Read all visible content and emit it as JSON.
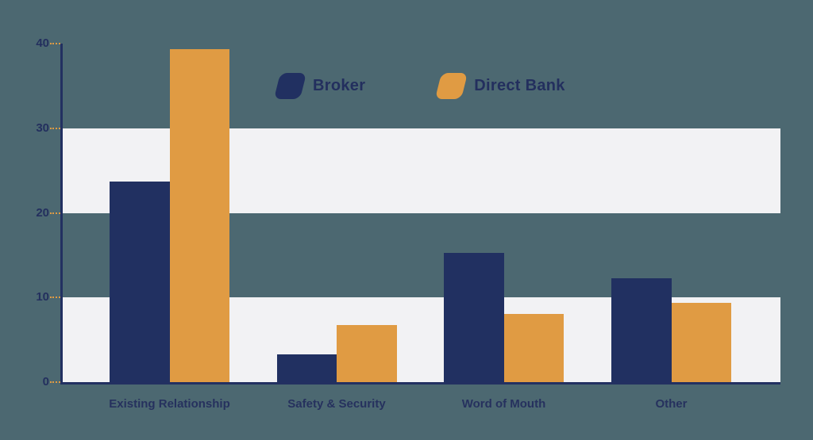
{
  "colors": {
    "background": "#4c6871",
    "band": "#f2f2f4",
    "axis": "#223061",
    "tick": "#e09b43",
    "text": "#232f5e",
    "broker": "#213061",
    "direct_bank": "#e09b43"
  },
  "legend": {
    "items": [
      {
        "label": "Broker",
        "color": "#213061"
      },
      {
        "label": "Direct Bank",
        "color": "#e09b43"
      }
    ]
  },
  "chart_data": {
    "type": "bar",
    "title": "",
    "categories": [
      "Existing Relationship",
      "Safety & Security",
      "Word of Mouth",
      "Other"
    ],
    "series": [
      {
        "name": "Broker",
        "color": "#213061",
        "values": [
          23.7,
          3.3,
          15.3,
          12.3
        ]
      },
      {
        "name": "Direct Bank",
        "color": "#e09b43",
        "values": [
          39.3,
          6.7,
          8.1,
          9.4
        ]
      }
    ],
    "ylim": [
      0,
      40
    ],
    "yticks": [
      0,
      10,
      20,
      30,
      40
    ],
    "highlight_bands": [
      [
        0,
        10
      ],
      [
        20,
        30
      ]
    ],
    "grid": "alternating light horizontal bands",
    "legend_position": "top-center",
    "xlabel": "",
    "ylabel": ""
  }
}
